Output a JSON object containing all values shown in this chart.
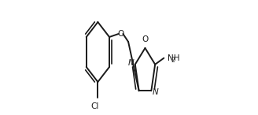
{
  "background_color": "#ffffff",
  "figsize": [
    3.28,
    1.46
  ],
  "dpi": 100,
  "line_color": "#1a1a1a",
  "lw": 1.4,
  "lw_double_inner": 1.2,
  "text_fontsize": 7.5,
  "nh2_label": "NH",
  "nh2_sub": "2",
  "o_label": "O",
  "n_label": "N",
  "cl_label": "Cl"
}
